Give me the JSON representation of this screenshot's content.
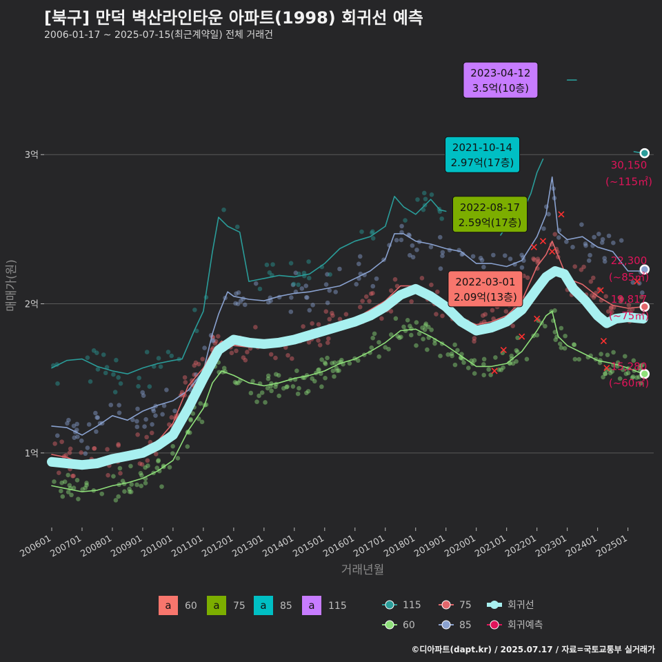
{
  "header": {
    "title": "[북구] 만덕 벽산라인타운 아파트(1998) 회귀선 예측",
    "subtitle": "2006-01-17 ~ 2025-07-15(최근계약일) 전체 거래건"
  },
  "footer": {
    "credit": "©디아파트(dapt.kr) / 2025.07.17 / 자료=국토교통부 실거래가"
  },
  "colors": {
    "background": "#262628",
    "grid": "#5a5a5a",
    "s60": "#8fe07a",
    "s75": "#e2676b",
    "s85": "#8aa2d0",
    "s115": "#2a9d9a",
    "regression": "#a8f0f0",
    "forecast": "#e0145a",
    "ann60": "#f8766d",
    "ann75": "#7cae00",
    "ann85": "#00bfc4",
    "ann115": "#c77cff"
  },
  "chart_data": {
    "type": "line",
    "xlabel": "거래년월",
    "ylabel": "매매가(원)",
    "x_ticks": [
      "200601",
      "200701",
      "200801",
      "200901",
      "201001",
      "201101",
      "201201",
      "201301",
      "201401",
      "201501",
      "201601",
      "201701",
      "201801",
      "201901",
      "202001",
      "202101",
      "202201",
      "202301",
      "202401",
      "202501"
    ],
    "y_ticks": [
      {
        "value": 1.0,
        "label": "1억"
      },
      {
        "value": 2.0,
        "label": "2억"
      },
      {
        "value": 3.0,
        "label": "3억"
      }
    ],
    "xlim": [
      2005.75,
      2025.85
    ],
    "ylim": [
      0.5,
      3.75
    ],
    "units": "억",
    "grid": true,
    "series": [
      {
        "name": "115",
        "key": "s115",
        "points": [
          [
            2006.0,
            1.57
          ],
          [
            2006.5,
            1.62
          ],
          [
            2007.0,
            1.63
          ],
          [
            2007.5,
            1.58
          ],
          [
            2008.0,
            1.55
          ],
          [
            2008.5,
            1.53
          ],
          [
            2009.0,
            1.57
          ],
          [
            2009.5,
            1.6
          ],
          [
            2010.0,
            1.62
          ],
          [
            2010.3,
            1.63
          ],
          [
            2010.7,
            1.82
          ],
          [
            2011.0,
            1.95
          ],
          [
            2011.3,
            2.35
          ],
          [
            2011.5,
            2.58
          ],
          [
            2011.8,
            2.52
          ],
          [
            2012.2,
            2.48
          ],
          [
            2012.5,
            2.15
          ],
          [
            2013.0,
            2.17
          ],
          [
            2013.5,
            2.19
          ],
          [
            2014.0,
            2.18
          ],
          [
            2014.5,
            2.2
          ],
          [
            2015.0,
            2.27
          ],
          [
            2015.5,
            2.37
          ],
          [
            2016.0,
            2.42
          ],
          [
            2016.5,
            2.45
          ],
          [
            2017.0,
            2.52
          ],
          [
            2017.3,
            2.72
          ],
          [
            2017.6,
            2.65
          ],
          [
            2018.0,
            2.6
          ],
          [
            2018.5,
            2.7
          ],
          [
            2018.8,
            2.63
          ],
          [
            2019.0,
            2.62
          ]
        ]
      },
      {
        "name": "115b",
        "key": "s115",
        "points": [
          [
            2020.8,
            2.46
          ],
          [
            2021.0,
            2.52
          ],
          [
            2021.3,
            2.58
          ],
          [
            2021.6,
            2.65
          ],
          [
            2021.8,
            2.74
          ],
          [
            2022.0,
            2.88
          ],
          [
            2022.2,
            2.97
          ]
        ]
      },
      {
        "name": "115c",
        "key": "s115",
        "points": [
          [
            2023.0,
            3.5
          ],
          [
            2023.3,
            3.5
          ]
        ]
      },
      {
        "name": "115d",
        "key": "s115",
        "points": [
          [
            2025.2,
            3.02
          ],
          [
            2025.5,
            3.01
          ]
        ]
      },
      {
        "name": "85",
        "key": "s85",
        "points": [
          [
            2006.0,
            1.18
          ],
          [
            2006.5,
            1.17
          ],
          [
            2007.0,
            1.12
          ],
          [
            2007.5,
            1.18
          ],
          [
            2008.0,
            1.25
          ],
          [
            2008.5,
            1.22
          ],
          [
            2009.0,
            1.28
          ],
          [
            2009.5,
            1.32
          ],
          [
            2010.0,
            1.35
          ],
          [
            2010.5,
            1.42
          ],
          [
            2011.0,
            1.55
          ],
          [
            2011.3,
            1.8
          ],
          [
            2011.5,
            1.93
          ],
          [
            2011.8,
            2.08
          ],
          [
            2012.0,
            2.05
          ],
          [
            2012.5,
            2.03
          ],
          [
            2013.0,
            2.02
          ],
          [
            2013.5,
            2.05
          ],
          [
            2014.0,
            2.07
          ],
          [
            2014.5,
            2.08
          ],
          [
            2015.0,
            2.1
          ],
          [
            2015.5,
            2.12
          ],
          [
            2016.0,
            2.17
          ],
          [
            2016.5,
            2.22
          ],
          [
            2017.0,
            2.3
          ],
          [
            2017.3,
            2.47
          ],
          [
            2017.6,
            2.47
          ],
          [
            2018.0,
            2.42
          ],
          [
            2018.5,
            2.4
          ],
          [
            2019.0,
            2.37
          ],
          [
            2019.5,
            2.35
          ],
          [
            2020.0,
            2.27
          ],
          [
            2020.5,
            2.27
          ],
          [
            2021.0,
            2.25
          ],
          [
            2021.5,
            2.29
          ],
          [
            2022.0,
            2.45
          ],
          [
            2022.3,
            2.6
          ],
          [
            2022.5,
            2.85
          ],
          [
            2022.7,
            2.48
          ],
          [
            2023.0,
            2.43
          ],
          [
            2023.5,
            2.45
          ],
          [
            2024.0,
            2.38
          ],
          [
            2024.5,
            2.35
          ],
          [
            2025.0,
            2.22
          ],
          [
            2025.5,
            2.22
          ]
        ]
      },
      {
        "name": "75",
        "key": "s75",
        "points": [
          [
            2006.0,
            0.99
          ],
          [
            2006.5,
            0.97
          ],
          [
            2007.0,
            0.93
          ],
          [
            2007.5,
            0.95
          ],
          [
            2008.0,
            0.98
          ],
          [
            2008.5,
            1.0
          ],
          [
            2009.0,
            1.02
          ],
          [
            2009.5,
            1.08
          ],
          [
            2010.0,
            1.2
          ],
          [
            2010.5,
            1.45
          ],
          [
            2011.0,
            1.57
          ],
          [
            2011.3,
            1.68
          ],
          [
            2011.6,
            1.75
          ],
          [
            2012.0,
            1.72
          ],
          [
            2012.5,
            1.71
          ],
          [
            2013.0,
            1.71
          ],
          [
            2013.5,
            1.73
          ],
          [
            2014.0,
            1.77
          ],
          [
            2014.5,
            1.8
          ],
          [
            2015.0,
            1.83
          ],
          [
            2015.5,
            1.86
          ],
          [
            2016.0,
            1.9
          ],
          [
            2016.5,
            1.96
          ],
          [
            2017.0,
            2.02
          ],
          [
            2017.5,
            2.12
          ],
          [
            2018.0,
            2.12
          ],
          [
            2018.5,
            2.05
          ],
          [
            2019.0,
            1.98
          ],
          [
            2019.5,
            1.9
          ],
          [
            2020.0,
            1.86
          ],
          [
            2020.5,
            1.88
          ],
          [
            2021.0,
            1.92
          ],
          [
            2021.5,
            2.02
          ],
          [
            2022.0,
            2.25
          ],
          [
            2022.3,
            2.33
          ],
          [
            2022.5,
            2.42
          ],
          [
            2022.7,
            2.32
          ],
          [
            2023.0,
            2.17
          ],
          [
            2023.5,
            2.13
          ],
          [
            2024.0,
            2.05
          ],
          [
            2024.5,
            1.99
          ],
          [
            2025.0,
            1.97
          ],
          [
            2025.5,
            1.98
          ]
        ]
      },
      {
        "name": "60",
        "key": "s60",
        "points": [
          [
            2006.0,
            0.78
          ],
          [
            2006.5,
            0.76
          ],
          [
            2007.0,
            0.74
          ],
          [
            2007.5,
            0.75
          ],
          [
            2008.0,
            0.78
          ],
          [
            2008.5,
            0.8
          ],
          [
            2009.0,
            0.83
          ],
          [
            2009.5,
            0.88
          ],
          [
            2010.0,
            0.95
          ],
          [
            2010.5,
            1.15
          ],
          [
            2011.0,
            1.3
          ],
          [
            2011.3,
            1.47
          ],
          [
            2011.6,
            1.55
          ],
          [
            2012.0,
            1.52
          ],
          [
            2012.5,
            1.47
          ],
          [
            2013.0,
            1.45
          ],
          [
            2013.5,
            1.47
          ],
          [
            2014.0,
            1.5
          ],
          [
            2014.5,
            1.52
          ],
          [
            2015.0,
            1.55
          ],
          [
            2015.5,
            1.6
          ],
          [
            2016.0,
            1.63
          ],
          [
            2016.5,
            1.68
          ],
          [
            2017.0,
            1.74
          ],
          [
            2017.5,
            1.82
          ],
          [
            2018.0,
            1.83
          ],
          [
            2018.5,
            1.78
          ],
          [
            2019.0,
            1.72
          ],
          [
            2019.5,
            1.65
          ],
          [
            2020.0,
            1.58
          ],
          [
            2020.5,
            1.58
          ],
          [
            2021.0,
            1.6
          ],
          [
            2021.5,
            1.68
          ],
          [
            2022.0,
            1.82
          ],
          [
            2022.3,
            1.92
          ],
          [
            2022.5,
            1.95
          ],
          [
            2022.7,
            1.78
          ],
          [
            2023.0,
            1.72
          ],
          [
            2023.5,
            1.67
          ],
          [
            2024.0,
            1.62
          ],
          [
            2024.5,
            1.6
          ],
          [
            2025.0,
            1.57
          ],
          [
            2025.5,
            1.53
          ]
        ]
      },
      {
        "name": "회귀선",
        "key": "regression",
        "points": [
          [
            2006.0,
            0.94
          ],
          [
            2006.5,
            0.93
          ],
          [
            2007.0,
            0.92
          ],
          [
            2007.5,
            0.93
          ],
          [
            2008.0,
            0.96
          ],
          [
            2008.5,
            0.98
          ],
          [
            2009.0,
            1.0
          ],
          [
            2009.5,
            1.05
          ],
          [
            2010.0,
            1.12
          ],
          [
            2010.5,
            1.3
          ],
          [
            2011.0,
            1.5
          ],
          [
            2011.5,
            1.69
          ],
          [
            2012.0,
            1.76
          ],
          [
            2012.5,
            1.74
          ],
          [
            2013.0,
            1.73
          ],
          [
            2013.5,
            1.74
          ],
          [
            2014.0,
            1.76
          ],
          [
            2014.5,
            1.79
          ],
          [
            2015.0,
            1.82
          ],
          [
            2015.5,
            1.85
          ],
          [
            2016.0,
            1.88
          ],
          [
            2016.5,
            1.92
          ],
          [
            2017.0,
            1.98
          ],
          [
            2017.5,
            2.06
          ],
          [
            2018.0,
            2.1
          ],
          [
            2018.5,
            2.05
          ],
          [
            2019.0,
            1.98
          ],
          [
            2019.5,
            1.88
          ],
          [
            2020.0,
            1.82
          ],
          [
            2020.5,
            1.84
          ],
          [
            2021.0,
            1.88
          ],
          [
            2021.5,
            1.96
          ],
          [
            2022.0,
            2.1
          ],
          [
            2022.3,
            2.18
          ],
          [
            2022.6,
            2.22
          ],
          [
            2022.9,
            2.2
          ],
          [
            2023.2,
            2.1
          ],
          [
            2023.6,
            2.02
          ],
          [
            2024.0,
            1.92
          ],
          [
            2024.3,
            1.87
          ],
          [
            2024.6,
            1.9
          ],
          [
            2025.0,
            1.91
          ],
          [
            2025.5,
            1.9
          ]
        ]
      }
    ],
    "scatter_groups": [
      {
        "key": "s60",
        "seed": 7,
        "count": 260,
        "spread": 0.08
      },
      {
        "key": "s75",
        "seed": 13,
        "count": 230,
        "spread": 0.09
      },
      {
        "key": "s85",
        "seed": 23,
        "count": 150,
        "spread": 0.1
      },
      {
        "key": "s115",
        "seed": 31,
        "count": 60,
        "spread": 0.1
      }
    ],
    "forecast_points": [
      [
        2021.5,
        1.78
      ],
      [
        2021.9,
        2.38
      ],
      [
        2022.2,
        2.42
      ],
      [
        2022.5,
        2.35
      ],
      [
        2022.8,
        2.6
      ],
      [
        2024.1,
        2.09
      ],
      [
        2024.2,
        1.75
      ],
      [
        2024.3,
        1.57
      ],
      [
        2025.3,
        2.15
      ],
      [
        2020.6,
        1.55
      ],
      [
        2020.9,
        1.69
      ],
      [
        2022.0,
        1.9
      ]
    ],
    "annotations": [
      {
        "date": "2023-04-12",
        "value": "3.5억(10층)",
        "size": "115",
        "x": 2020.8,
        "y": 3.5,
        "color_key": "ann115"
      },
      {
        "date": "2021-10-14",
        "value": "2.97억(17층)",
        "size": "85",
        "x": 2020.2,
        "y": 3.0,
        "color_key": "ann85"
      },
      {
        "date": "2022-08-17",
        "value": "2.59억(17층)",
        "size": "75",
        "x": 2020.45,
        "y": 2.6,
        "color_key": "ann75"
      },
      {
        "date": "2022-03-01",
        "value": "2.09억(13층)",
        "size": "60",
        "x": 2020.3,
        "y": 2.1,
        "color_key": "ann60"
      }
    ],
    "end_labels": [
      {
        "value": "30,150",
        "area": "(~115㎡)",
        "y": 3.01,
        "key": "s115",
        "label_y": 2.93
      },
      {
        "value": "22,300",
        "area": "(~85㎡)",
        "y": 2.23,
        "key": "s85",
        "label_y": 2.29
      },
      {
        "value": "19,817",
        "area": "(~75㎡)",
        "y": 1.98,
        "key": "s75",
        "label_y": 2.03
      },
      {
        "value": "15,280",
        "area": "(~60㎡)",
        "y": 1.53,
        "key": "s60",
        "label_y": 1.58
      }
    ],
    "legend": {
      "placement": "bottom",
      "text_items": [
        {
          "label": "60",
          "key": "ann60"
        },
        {
          "label": "75",
          "key": "ann75"
        },
        {
          "label": "85",
          "key": "ann85"
        },
        {
          "label": "115",
          "key": "ann115"
        }
      ],
      "line_items": [
        {
          "label": "115",
          "key": "s115"
        },
        {
          "label": "75",
          "key": "s75"
        },
        {
          "label": "회귀선",
          "key": "regression"
        },
        {
          "label": "60",
          "key": "s60"
        },
        {
          "label": "85",
          "key": "s85"
        },
        {
          "label": "회귀예측",
          "key": "forecast"
        }
      ],
      "glyph": "a"
    }
  }
}
